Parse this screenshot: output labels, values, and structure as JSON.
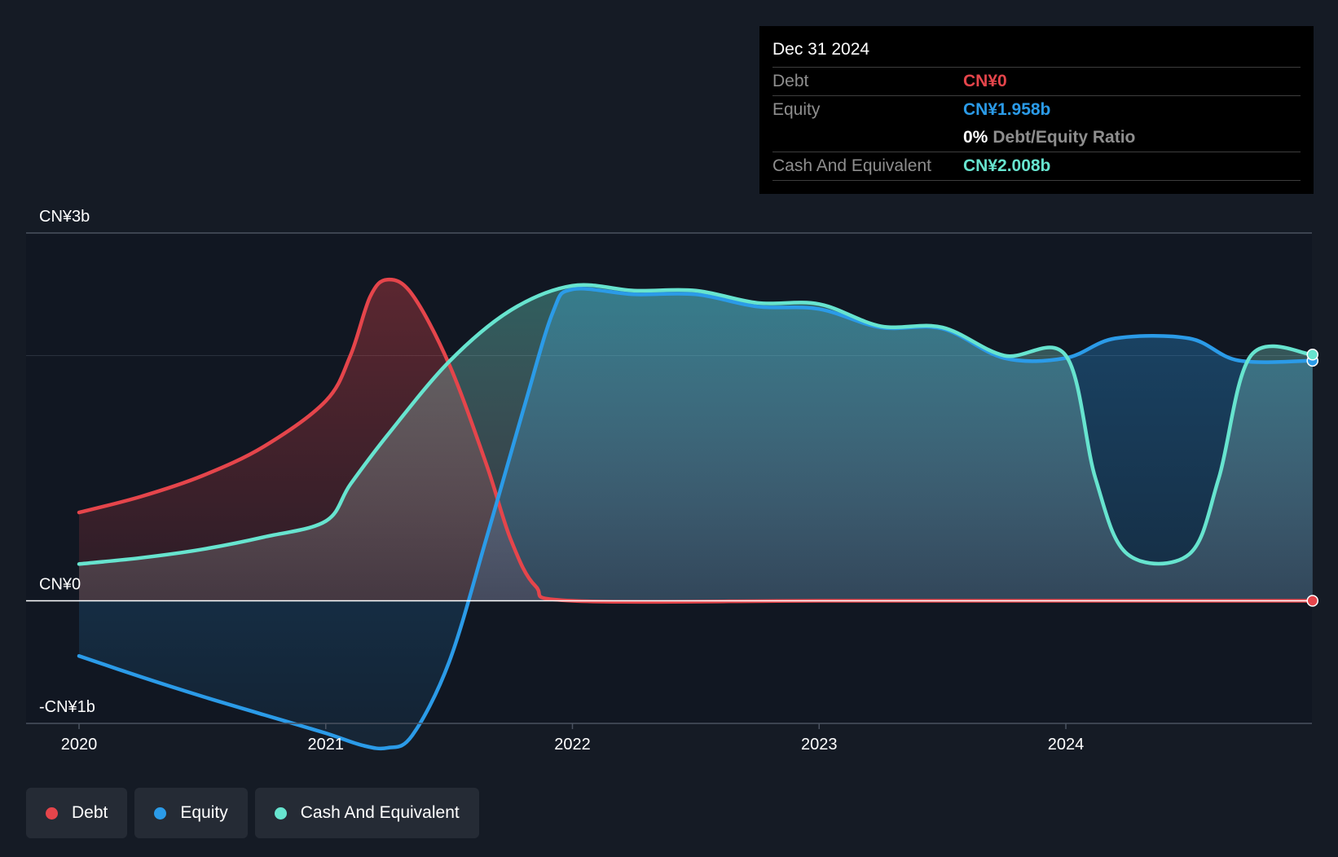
{
  "chart_data": {
    "type": "area",
    "y_unit": "CN¥ billions",
    "ylim": [
      -1,
      3
    ],
    "y_ticks": [
      {
        "value": 3,
        "label": "CN¥3b"
      },
      {
        "value": 0,
        "label": "CN¥0"
      },
      {
        "value": -1,
        "label": "-CN¥1b"
      }
    ],
    "x_ticks": [
      {
        "value": 2020.0,
        "label": "2020"
      },
      {
        "value": 2021.0,
        "label": "2021"
      },
      {
        "value": 2022.0,
        "label": "2022"
      },
      {
        "value": 2023.0,
        "label": "2023"
      },
      {
        "value": 2024.0,
        "label": "2024"
      }
    ],
    "xlim": [
      2019.79,
      2025.0
    ],
    "gridlines": [
      3,
      2
    ],
    "series": [
      {
        "name": "Debt",
        "color": "#e5454b",
        "points": [
          [
            2020.0,
            0.72
          ],
          [
            2020.25,
            0.85
          ],
          [
            2020.5,
            1.02
          ],
          [
            2020.75,
            1.26
          ],
          [
            2021.0,
            1.63
          ],
          [
            2021.1,
            2.0
          ],
          [
            2021.18,
            2.48
          ],
          [
            2021.25,
            2.62
          ],
          [
            2021.35,
            2.5
          ],
          [
            2021.5,
            1.93
          ],
          [
            2021.65,
            1.12
          ],
          [
            2021.75,
            0.5
          ],
          [
            2021.85,
            0.12
          ],
          [
            2022.0,
            0.0
          ],
          [
            2023.0,
            0.0
          ],
          [
            2024.0,
            0.0
          ],
          [
            2025.0,
            0.0
          ]
        ]
      },
      {
        "name": "Equity",
        "color": "#2b9be8",
        "points": [
          [
            2020.0,
            -0.45
          ],
          [
            2020.25,
            -0.62
          ],
          [
            2020.5,
            -0.78
          ],
          [
            2020.75,
            -0.93
          ],
          [
            2021.0,
            -1.08
          ],
          [
            2021.15,
            -1.18
          ],
          [
            2021.25,
            -1.2
          ],
          [
            2021.35,
            -1.1
          ],
          [
            2021.5,
            -0.5
          ],
          [
            2021.65,
            0.5
          ],
          [
            2021.8,
            1.55
          ],
          [
            2021.92,
            2.35
          ],
          [
            2022.0,
            2.54
          ],
          [
            2022.25,
            2.5
          ],
          [
            2022.5,
            2.5
          ],
          [
            2022.75,
            2.4
          ],
          [
            2023.0,
            2.38
          ],
          [
            2023.25,
            2.23
          ],
          [
            2023.5,
            2.22
          ],
          [
            2023.75,
            1.98
          ],
          [
            2024.0,
            1.98
          ],
          [
            2024.2,
            2.14
          ],
          [
            2024.5,
            2.14
          ],
          [
            2024.7,
            1.96
          ],
          [
            2025.0,
            1.958
          ]
        ]
      },
      {
        "name": "Cash And Equivalent",
        "color": "#67e4cf",
        "points": [
          [
            2020.0,
            0.3
          ],
          [
            2020.25,
            0.35
          ],
          [
            2020.5,
            0.42
          ],
          [
            2020.75,
            0.52
          ],
          [
            2021.0,
            0.65
          ],
          [
            2021.1,
            0.95
          ],
          [
            2021.25,
            1.35
          ],
          [
            2021.5,
            1.95
          ],
          [
            2021.75,
            2.37
          ],
          [
            2022.0,
            2.57
          ],
          [
            2022.25,
            2.53
          ],
          [
            2022.5,
            2.53
          ],
          [
            2022.75,
            2.43
          ],
          [
            2023.0,
            2.42
          ],
          [
            2023.25,
            2.24
          ],
          [
            2023.5,
            2.23
          ],
          [
            2023.75,
            2.0
          ],
          [
            2024.0,
            2.0
          ],
          [
            2024.12,
            1.0
          ],
          [
            2024.25,
            0.38
          ],
          [
            2024.5,
            0.38
          ],
          [
            2024.62,
            1.0
          ],
          [
            2024.75,
            2.0
          ],
          [
            2025.0,
            2.008
          ]
        ]
      }
    ]
  },
  "tooltip": {
    "date": "Dec 31 2024",
    "rows": [
      {
        "key": "Debt",
        "value": "CN¥0",
        "color": "#e5454b"
      },
      {
        "key": "Equity",
        "value": "CN¥1.958b",
        "color": "#2b9be8"
      },
      {
        "key": "",
        "ratio": "0%",
        "ratio_label": "Debt/Equity Ratio"
      },
      {
        "key": "Cash And Equivalent",
        "value": "CN¥2.008b",
        "color": "#67e4cf"
      }
    ]
  },
  "legend": [
    {
      "label": "Debt",
      "color": "#e5454b"
    },
    {
      "label": "Equity",
      "color": "#2b9be8"
    },
    {
      "label": "Cash And Equivalent",
      "color": "#67e4cf"
    }
  ]
}
